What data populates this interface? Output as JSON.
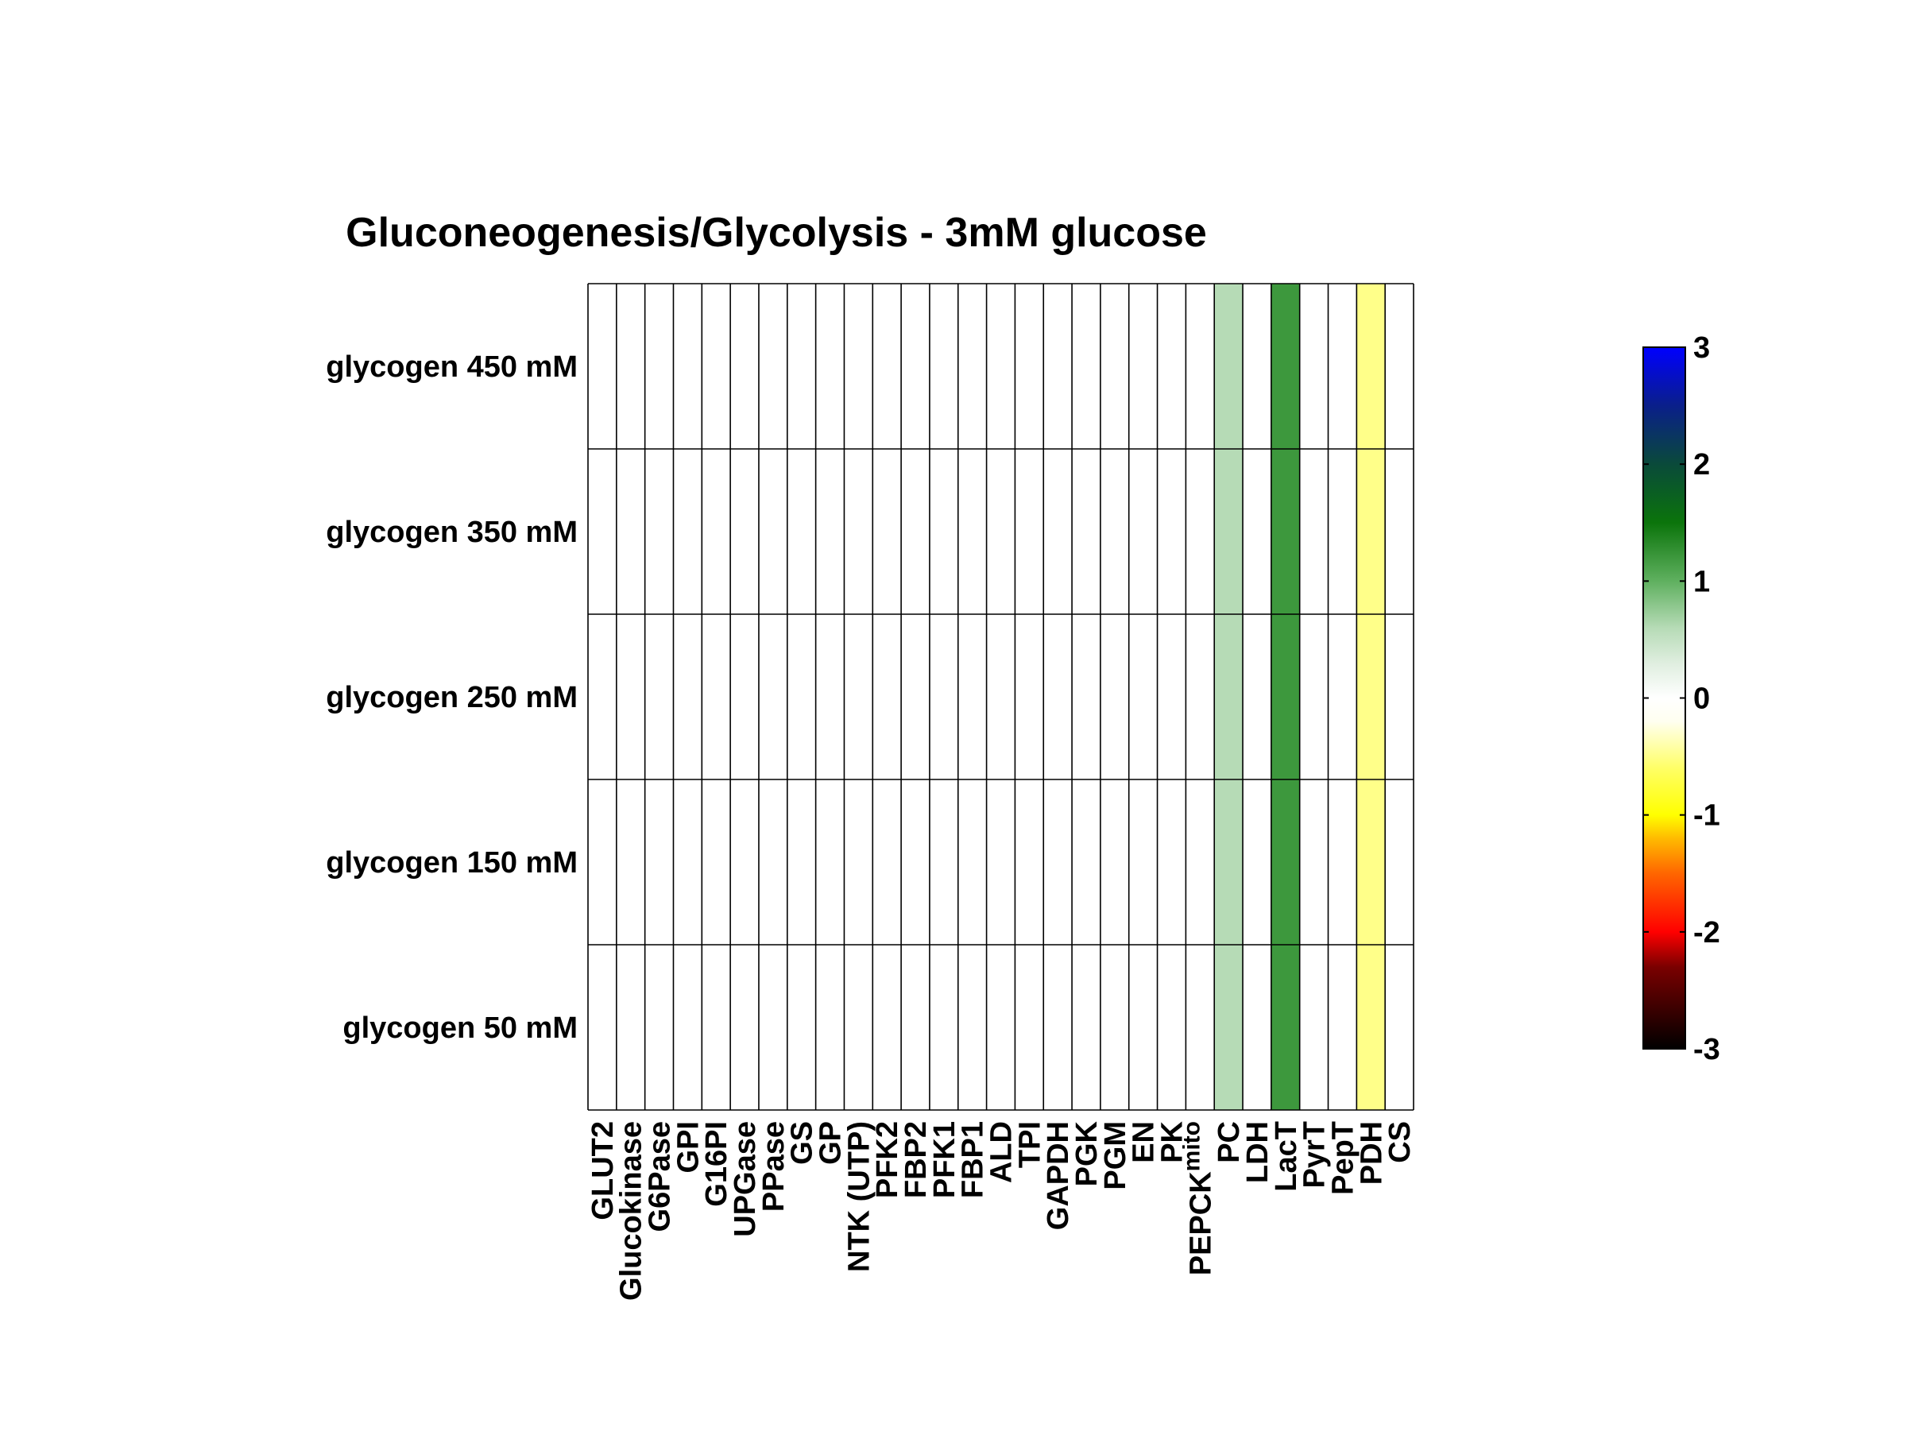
{
  "chart_data": {
    "type": "heatmap",
    "title": "Gluconeogenesis/Glycolysis - 3mM glucose",
    "xlabel": "",
    "ylabel": "",
    "rows": [
      "glycogen 450 mM",
      "glycogen 350 mM",
      "glycogen 250 mM",
      "glycogen 150 mM",
      "glycogen 50 mM"
    ],
    "columns": [
      {
        "label": "GLUT2"
      },
      {
        "label": "Glucokinase"
      },
      {
        "label": "G6Pase"
      },
      {
        "label": "GPI"
      },
      {
        "label": "G16PI"
      },
      {
        "label": "UPGase"
      },
      {
        "label": "PPase"
      },
      {
        "label": "GS"
      },
      {
        "label": "GP"
      },
      {
        "label": "NTK (UTP)"
      },
      {
        "label": "PFK2"
      },
      {
        "label": "FBP2"
      },
      {
        "label": "PFK1"
      },
      {
        "label": "FBP1"
      },
      {
        "label": "ALD"
      },
      {
        "label": "TPI"
      },
      {
        "label": "GAPDH"
      },
      {
        "label": "PGK"
      },
      {
        "label": "PGM"
      },
      {
        "label": "EN"
      },
      {
        "label": "PK"
      },
      {
        "label": "PEPCK",
        "subscript": "mito"
      },
      {
        "label": "PC"
      },
      {
        "label": "LDH"
      },
      {
        "label": "LacT"
      },
      {
        "label": "PyrT"
      },
      {
        "label": "PepT"
      },
      {
        "label": "PDH"
      },
      {
        "label": "CS"
      }
    ],
    "values": [
      [
        0,
        0,
        0,
        0,
        0,
        0,
        0,
        0,
        0,
        0,
        0,
        0,
        0,
        0,
        0,
        0,
        0,
        0,
        0,
        0,
        0,
        0,
        0.6,
        0,
        1.2,
        0,
        0,
        -0.5,
        0
      ],
      [
        0,
        0,
        0,
        0,
        0,
        0,
        0,
        0,
        0,
        0,
        0,
        0,
        0,
        0,
        0,
        0,
        0,
        0,
        0,
        0,
        0,
        0,
        0.6,
        0,
        1.2,
        0,
        0,
        -0.5,
        0
      ],
      [
        0,
        0,
        0,
        0,
        0,
        0,
        0,
        0,
        0,
        0,
        0,
        0,
        0,
        0,
        0,
        0,
        0,
        0,
        0,
        0,
        0,
        0,
        0.6,
        0,
        1.2,
        0,
        0,
        -0.5,
        0
      ],
      [
        0,
        0,
        0,
        0,
        0,
        0,
        0,
        0,
        0,
        0,
        0,
        0,
        0,
        0,
        0,
        0,
        0,
        0,
        0,
        0,
        0,
        0,
        0.6,
        0,
        1.2,
        0,
        0,
        -0.5,
        0
      ],
      [
        0,
        0,
        0,
        0,
        0,
        0,
        0,
        0,
        0,
        0,
        0,
        0,
        0,
        0,
        0,
        0,
        0,
        0,
        0,
        0,
        0,
        0,
        0.6,
        0,
        1.2,
        0,
        0,
        -0.5,
        0
      ]
    ],
    "colorbar": {
      "range": [
        -3,
        3
      ],
      "ticks": [
        3,
        2,
        1,
        0,
        -1,
        -2,
        -3
      ],
      "stops": [
        {
          "value": -3,
          "color": "#000000"
        },
        {
          "value": -2.3,
          "color": "#7a0000"
        },
        {
          "value": -2,
          "color": "#ff0000"
        },
        {
          "value": -1.5,
          "color": "#ff6600"
        },
        {
          "value": -1.2,
          "color": "#ffbb00"
        },
        {
          "value": -1,
          "color": "#ffff00"
        },
        {
          "value": -0.6,
          "color": "#ffff66"
        },
        {
          "value": -0.2,
          "color": "#fffff0"
        },
        {
          "value": 0,
          "color": "#ffffff"
        },
        {
          "value": 0.3,
          "color": "#dfeedf"
        },
        {
          "value": 0.6,
          "color": "#b6dbb6"
        },
        {
          "value": 1,
          "color": "#5fb05f"
        },
        {
          "value": 1.5,
          "color": "#0b740b"
        },
        {
          "value": 2,
          "color": "#0a4a3a"
        },
        {
          "value": 2.5,
          "color": "#0a1f8a"
        },
        {
          "value": 3,
          "color": "#0000ff"
        }
      ]
    },
    "grid": true
  }
}
